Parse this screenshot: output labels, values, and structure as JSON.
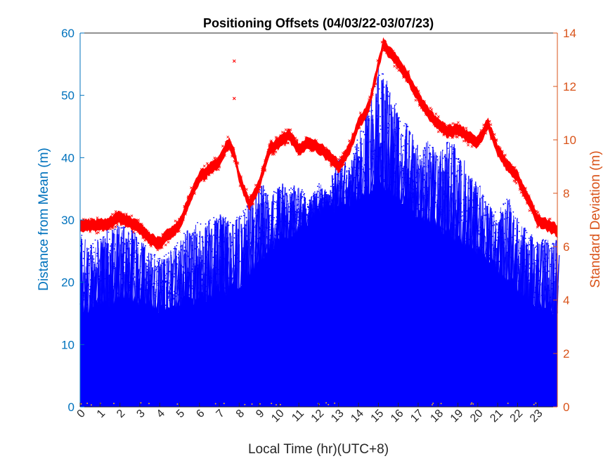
{
  "chart_data": {
    "type": "scatter",
    "title": "Positioning Offsets (04/03/22-03/07/23)",
    "xlabel": "Local Time (hr)(UTC+8)",
    "ylabel_left": "Distance from Mean (m)",
    "ylabel_right": "Standard Deviation (m)",
    "xlim": [
      0,
      24
    ],
    "ylim_left": [
      0,
      60
    ],
    "ylim_right": [
      0,
      14
    ],
    "x_ticks": [
      "0",
      "1",
      "2",
      "3",
      "4",
      "5",
      "6",
      "7",
      "8",
      "9",
      "10",
      "11",
      "12",
      "13",
      "14",
      "15",
      "16",
      "17",
      "18",
      "19",
      "20",
      "21",
      "22",
      "23"
    ],
    "y_ticks_left": [
      "0",
      "10",
      "20",
      "30",
      "40",
      "50",
      "60"
    ],
    "y_ticks_right": [
      "0",
      "2",
      "4",
      "6",
      "8",
      "10",
      "12",
      "14"
    ],
    "grid": false,
    "series": [
      {
        "axis": "left",
        "marker": "dot",
        "color": "#0000FF",
        "x": [
          0,
          0.5,
          1,
          1.5,
          2,
          2.5,
          3,
          3.5,
          4,
          4.5,
          5,
          5.5,
          6,
          6.5,
          7,
          7.5,
          8,
          8.5,
          9,
          9.5,
          10,
          10.5,
          11,
          11.5,
          12,
          12.5,
          13,
          13.5,
          14,
          14.5,
          15,
          15.5,
          16,
          16.5,
          17,
          17.5,
          18,
          18.5,
          19,
          19.5,
          20,
          20.5,
          21,
          21.5,
          22,
          22.5,
          23,
          23.5,
          24
        ],
        "y_dense_top": [
          16,
          16,
          17,
          17,
          18,
          18,
          17,
          17,
          16,
          16,
          17,
          17,
          18,
          18,
          19,
          19,
          20,
          22,
          24,
          26,
          27,
          28,
          29,
          30,
          31,
          32,
          32,
          33,
          34,
          35,
          36,
          35,
          34,
          33,
          31,
          30,
          29,
          28,
          27,
          26,
          25,
          24,
          22,
          21,
          19,
          18,
          17,
          16,
          16
        ],
        "y_spike_top": [
          28,
          26,
          28,
          29,
          29,
          29,
          27,
          25,
          24,
          25,
          27,
          29,
          30,
          30,
          31,
          30,
          31,
          33,
          36,
          34,
          36,
          35,
          36,
          33,
          36,
          34,
          41,
          38,
          44,
          49,
          55,
          52,
          48,
          45,
          41,
          43,
          40,
          44,
          41,
          38,
          36,
          33,
          31,
          34,
          30,
          28,
          27,
          27,
          28
        ]
      },
      {
        "axis": "right",
        "marker": "x",
        "color": "#FF0000",
        "x": [
          0,
          0.5,
          1,
          1.5,
          2,
          2.5,
          3,
          3.5,
          4,
          4.5,
          5,
          5.5,
          6,
          6.5,
          7,
          7.25,
          7.5,
          7.75,
          8,
          8.5,
          9,
          9.5,
          10,
          10.5,
          11,
          11.5,
          12,
          12.5,
          13,
          13.5,
          14,
          14.5,
          15,
          15.25,
          15.5,
          16,
          16.5,
          17,
          17.5,
          18,
          18.5,
          19,
          19.5,
          20,
          20.5,
          21,
          21.5,
          22,
          22.5,
          23,
          23.5,
          24
        ],
        "y": [
          6.8,
          6.8,
          6.8,
          6.9,
          7.1,
          6.9,
          6.7,
          6.3,
          6.1,
          6.5,
          6.8,
          7.8,
          8.6,
          8.9,
          9.2,
          9.6,
          9.9,
          9.5,
          8.6,
          7.6,
          8.3,
          9.6,
          9.9,
          10.2,
          9.6,
          9.9,
          9.7,
          9.4,
          9.0,
          9.6,
          10.6,
          11.2,
          12.8,
          13.6,
          13.3,
          12.9,
          12.3,
          11.6,
          11.0,
          10.6,
          10.3,
          10.4,
          10.1,
          9.9,
          10.6,
          9.6,
          9.0,
          8.6,
          7.8,
          7.0,
          6.8,
          6.6
        ]
      },
      {
        "axis": "right",
        "marker": "x",
        "color": "#FF0000",
        "x": [
          7.75,
          7.75
        ],
        "y": [
          12.95,
          11.55
        ]
      }
    ]
  }
}
